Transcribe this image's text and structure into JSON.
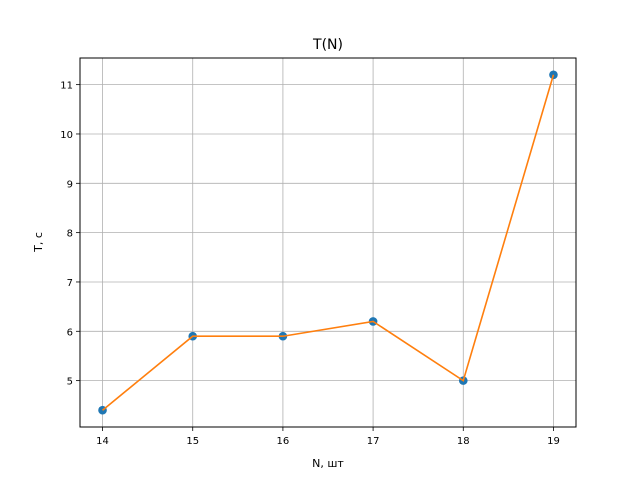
{
  "chart_data": {
    "type": "line",
    "title": "T(N)",
    "xlabel": "N, шт",
    "ylabel": "T, с",
    "x": [
      14,
      15,
      16,
      17,
      18,
      19
    ],
    "series": [
      {
        "values": [
          4.4,
          5.9,
          5.9,
          6.2,
          5.0,
          11.2
        ]
      }
    ],
    "xlim": [
      13.75,
      19.25
    ],
    "ylim": [
      4.06,
      11.54
    ],
    "xticks": [
      "14",
      "15",
      "16",
      "17",
      "18",
      "19"
    ],
    "yticks": [
      "5",
      "6",
      "7",
      "8",
      "9",
      "10",
      "11"
    ],
    "grid": true,
    "colors": {
      "line": "#ff7f0e",
      "marker": "#1f77b4",
      "grid": "#b0b0b0"
    }
  }
}
